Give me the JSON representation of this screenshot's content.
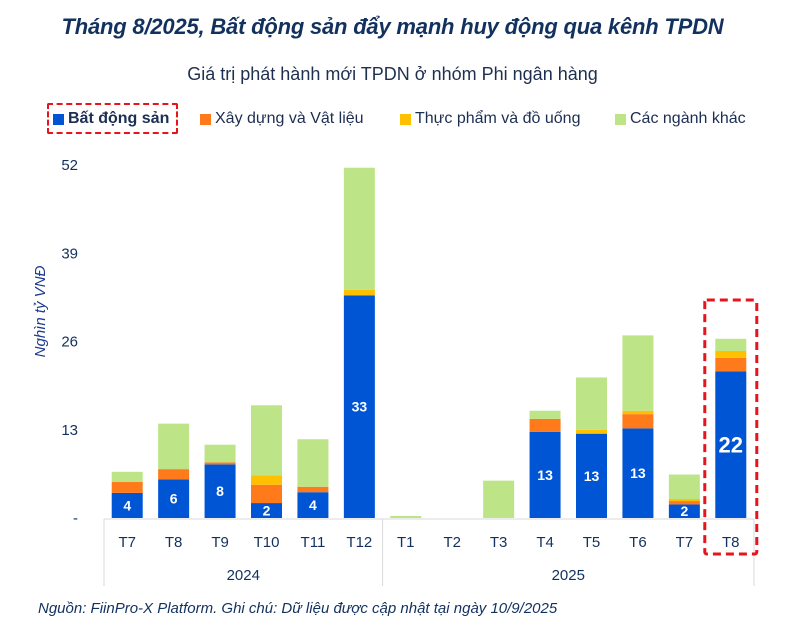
{
  "header": {
    "title": "Tháng 8/2025, Bất động sản đẩy mạnh huy động qua kênh TPDN",
    "subtitle": "Giá trị phát hành mới TPDN ở nhóm Phi ngân hàng"
  },
  "legend": [
    {
      "label": "Bất động sản",
      "color": "#0055d4",
      "highlighted": true
    },
    {
      "label": "Xây dựng và Vật liệu",
      "color": "#ff7a1a",
      "highlighted": false
    },
    {
      "label": "Thực phẩm và đồ uống",
      "color": "#ffc000",
      "highlighted": false
    },
    {
      "label": "Các ngành khác",
      "color": "#bde486",
      "highlighted": false
    }
  ],
  "footer": {
    "source": "Nguồn: FiinPro-X Platform. Ghi chú: Dữ liệu được cập nhật tại ngày 10/9/2025"
  },
  "chart_data": {
    "type": "bar",
    "stacked": true,
    "title": "Giá trị phát hành mới TPDN ở nhóm Phi ngân hàng",
    "xlabel": "",
    "ylabel": "Nghìn tỷ VNĐ",
    "ylim": [
      0,
      52
    ],
    "yticks": [
      0,
      13,
      26,
      39,
      52
    ],
    "ytick_labels": [
      "-",
      "13",
      "26",
      "39",
      "52"
    ],
    "grid": false,
    "legend_position": "top",
    "categories": [
      "T7",
      "T8",
      "T9",
      "T10",
      "T11",
      "T12",
      "T1",
      "T2",
      "T3",
      "T4",
      "T5",
      "T6",
      "T7",
      "T8"
    ],
    "groups": [
      {
        "label": "2024",
        "start": 0,
        "end": 5
      },
      {
        "label": "2025",
        "start": 6,
        "end": 13
      }
    ],
    "series": [
      {
        "name": "Bất động sản",
        "color": "#0055d4",
        "values": [
          3.7,
          5.7,
          7.9,
          2.2,
          3.8,
          32.8,
          0,
          0,
          0,
          12.7,
          12.4,
          13.2,
          2.0,
          21.6
        ]
      },
      {
        "name": "Xây dựng và Vật liệu",
        "color": "#ff7a1a",
        "values": [
          1.6,
          1.5,
          0.3,
          2.7,
          0.8,
          0,
          0,
          0,
          0,
          1.9,
          0.1,
          2.1,
          0.5,
          2.0
        ]
      },
      {
        "name": "Thực phẩm và đồ uống",
        "color": "#ffc000",
        "values": [
          0,
          0,
          0,
          1.4,
          0,
          0.8,
          0,
          0,
          0,
          0,
          0.5,
          0.5,
          0.3,
          1.0
        ]
      },
      {
        "name": "Các ngành khác",
        "color": "#bde486",
        "values": [
          1.5,
          6.7,
          2.6,
          10.3,
          7.0,
          18.0,
          0.3,
          0,
          5.5,
          1.2,
          7.7,
          11.1,
          3.6,
          1.8
        ]
      }
    ],
    "data_labels": [
      "4",
      "6",
      "8",
      "2",
      "4",
      "33",
      "",
      "",
      "",
      "13",
      "13",
      "13",
      "2",
      "22"
    ],
    "highlight_index": 13,
    "highlight_color": "#e8141b"
  }
}
